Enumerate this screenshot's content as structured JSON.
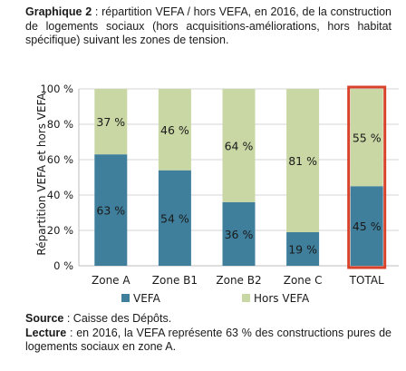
{
  "caption": {
    "label": "Graphique 2",
    "text": " : répartition VEFA / hors VEFA, en 2016, de la construction de logements sociaux (hors acquisitions-améliorations, hors habitat spécifique) suivant les zones de tension."
  },
  "footer": {
    "source_label": "Source",
    "source_text": " : Caisse des Dépôts.",
    "lecture_label": "Lecture",
    "lecture_text": " : en 2016, la VEFA représente 63 % des constructions pures de logements sociaux en zone A."
  },
  "chart_data": {
    "type": "bar",
    "stacked": true,
    "categories": [
      "Zone A",
      "Zone B1",
      "Zone B2",
      "Zone C",
      "TOTAL"
    ],
    "series": [
      {
        "name": "VEFA",
        "values": [
          63,
          54,
          36,
          19,
          45
        ],
        "labels": [
          "63 %",
          "54 %",
          "36 %",
          "19 %",
          "45 %"
        ],
        "color": "#3f7f9c"
      },
      {
        "name": "Hors VEFA",
        "values": [
          37,
          46,
          64,
          81,
          55
        ],
        "labels": [
          "37 %",
          "46 %",
          "64 %",
          "81 %",
          "55 %"
        ],
        "color": "#c9d7a4"
      }
    ],
    "ylabel": "Répartition VEFA et hors VEFA",
    "ylim": [
      0,
      100
    ],
    "yticks": [
      0,
      20,
      40,
      60,
      80,
      100
    ],
    "ytick_labels": [
      "0 %",
      "20 %",
      "40 %",
      "60 %",
      "80 %",
      "100 %"
    ],
    "highlight_category": "TOTAL",
    "highlight_color": "#d9412a",
    "grid": true,
    "legend_position": "bottom"
  }
}
